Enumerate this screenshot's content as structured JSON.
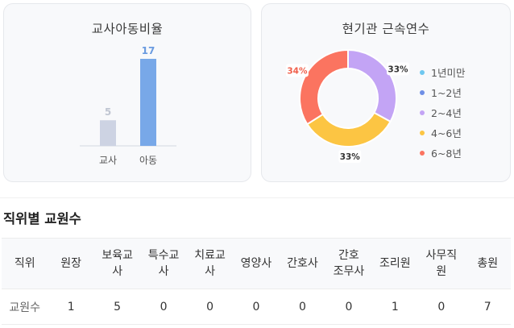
{
  "ratio_card": {
    "title": "교사아동비율",
    "chart_data": {
      "type": "bar",
      "categories": [
        "교사",
        "아동"
      ],
      "values": [
        5,
        17
      ],
      "colors": [
        "#cdd3e3",
        "#78a8e8"
      ],
      "label_colors": [
        "#c0c6d2",
        "#6a9be0"
      ]
    }
  },
  "tenure_card": {
    "title": "현기관 근속연수",
    "chart_data": {
      "type": "pie",
      "categories": [
        "1년미만",
        "1~2년",
        "2~4년",
        "4~6년",
        "6~8년"
      ],
      "values": [
        0,
        0,
        33,
        33,
        34
      ],
      "label_values": [
        "",
        "",
        "33%",
        "33%",
        "34%"
      ],
      "colors": [
        "#6fc8f0",
        "#6f8fe6",
        "#c3a4f5",
        "#fcc543",
        "#fb7460"
      ]
    }
  },
  "staff_section": {
    "title": "직위별 교원수",
    "headers": [
      "직위",
      "원장",
      "보육교\n사",
      "특수교\n사",
      "치료교\n사",
      "영양사",
      "간호사",
      "간호\n조무사",
      "조리원",
      "사무직\n원",
      "총원"
    ],
    "row_label": "교원수",
    "values": [
      "1",
      "5",
      "0",
      "0",
      "0",
      "0",
      "0",
      "1",
      "0",
      "7"
    ]
  }
}
